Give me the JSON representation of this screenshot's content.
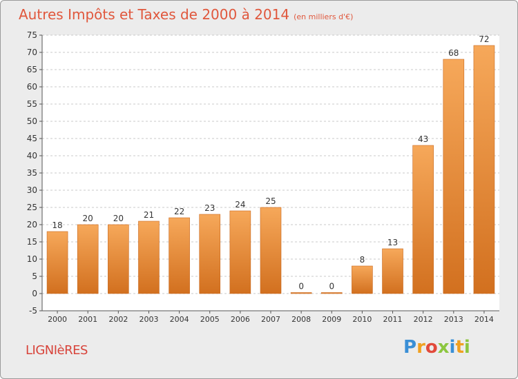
{
  "header": {
    "title": "Autres Impôts et Taxes de 2000 à 2014",
    "unit": "(en milliers d'€)"
  },
  "footer": {
    "commune": "LIGNIèRES",
    "brand_letters": [
      "P",
      "r",
      "o",
      "x",
      "i",
      "t",
      "i"
    ],
    "brand_colors": [
      "#3a8fd6",
      "#f0a020",
      "#e24a3b",
      "#8cc63f",
      "#3a8fd6",
      "#f0a020",
      "#8cc63f"
    ]
  },
  "colors": {
    "bar_light": "#f6a85a",
    "bar_dark": "#d2701f",
    "text": "#333333",
    "grid": "#c8c8c8"
  },
  "chart_data": {
    "type": "bar",
    "title": "Autres Impôts et Taxes de 2000 à 2014",
    "subtitle": "(en milliers d'€)",
    "categories": [
      "2000",
      "2001",
      "2002",
      "2003",
      "2004",
      "2005",
      "2006",
      "2007",
      "2008",
      "2009",
      "2010",
      "2011",
      "2012",
      "2013",
      "2014"
    ],
    "values": [
      18,
      20,
      20,
      21,
      22,
      23,
      24,
      25,
      0,
      0,
      8,
      13,
      43,
      68,
      72
    ],
    "ylim": [
      -5,
      75
    ],
    "yticks": [
      -5,
      0,
      5,
      10,
      15,
      20,
      25,
      30,
      35,
      40,
      45,
      50,
      55,
      60,
      65,
      70,
      75
    ],
    "grid": true,
    "data_labels": true
  }
}
